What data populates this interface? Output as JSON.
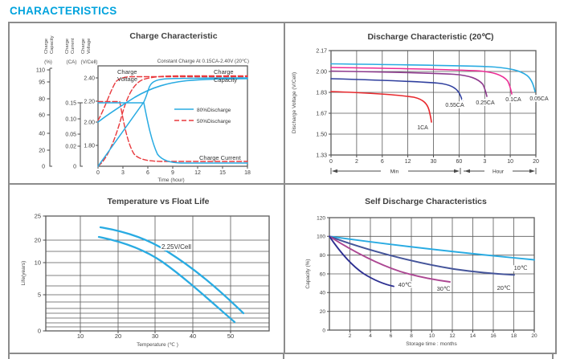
{
  "page": {
    "title": "CHARACTERISTICS"
  },
  "colors": {
    "accent": "#00A3DD",
    "grid": "#5A5A5A",
    "table_border": "#8C8C8C",
    "text": "#3C3C3C"
  },
  "chart_data": [
    {
      "type": "line",
      "title": "Charge Characteristic",
      "subtitle": "Constant Charge At 0.15CA-2.40V  (20℃)",
      "x_label": "Time (hour)",
      "x_tick_labels": [
        "0",
        "3",
        "6",
        "9",
        "12",
        "15",
        "18"
      ],
      "axes": [
        {
          "name": "Charge Capacity",
          "name_lines": [
            "Charge",
            "Capacity"
          ],
          "unit": "(%)",
          "ticks": [
            "110",
            "95",
            "80",
            "60",
            "40",
            "20",
            "0"
          ]
        },
        {
          "name": "Charge Current",
          "name_lines": [
            "Charge",
            "Current"
          ],
          "unit": "(CA)",
          "ticks": [
            "0.15",
            "0.10",
            "0.05",
            "0.02",
            "0"
          ]
        },
        {
          "name": "Charge Voltage",
          "name_lines": [
            "Charge",
            "Voltage"
          ],
          "unit": "(V/Cell)",
          "ticks": [
            "2.40",
            "2.20",
            "2.00",
            "1.80"
          ]
        }
      ],
      "legend": [
        {
          "label": "80%Discharge",
          "color": "#29ABE2",
          "line": "solid"
        },
        {
          "label": "50%Discharge",
          "color": "#E8393D",
          "line": "dashed"
        }
      ],
      "annotations": {
        "charge_voltage": [
          "Charge",
          "Voltage"
        ],
        "charge_capacity": [
          "Charge",
          "Capacity"
        ],
        "charge_current": "Charge Current"
      },
      "series": [
        {
          "name": "50% voltage (V/Cell)",
          "color": "#E8393D",
          "points": [
            [
              0,
              2.02
            ],
            [
              1,
              2.14
            ],
            [
              2,
              2.3
            ],
            [
              2.8,
              2.4
            ],
            [
              18,
              2.4
            ]
          ]
        },
        {
          "name": "50% capacity (%)",
          "color": "#E8393D",
          "points": [
            [
              0,
              0
            ],
            [
              1,
              20
            ],
            [
              2,
              55
            ],
            [
              3,
              85
            ],
            [
              4,
              95
            ],
            [
              6,
              99
            ],
            [
              18,
              100
            ]
          ]
        },
        {
          "name": "50% current (CA)",
          "color": "#E8393D",
          "points": [
            [
              0,
              0.15
            ],
            [
              2.8,
              0.15
            ],
            [
              3.5,
              0.06
            ],
            [
              4.5,
              0.02
            ],
            [
              18,
              0.004
            ]
          ]
        },
        {
          "name": "80% voltage (V/Cell)",
          "color": "#29ABE2",
          "points": [
            [
              0,
              2.0
            ],
            [
              2,
              2.1
            ],
            [
              4,
              2.22
            ],
            [
              6,
              2.31
            ],
            [
              9,
              2.36
            ],
            [
              12,
              2.38
            ],
            [
              18,
              2.39
            ]
          ]
        },
        {
          "name": "80% capacity (%)",
          "color": "#29ABE2",
          "points": [
            [
              0,
              0
            ],
            [
              2,
              29
            ],
            [
              4,
              58
            ],
            [
              5.5,
              79
            ],
            [
              6,
              93
            ],
            [
              8,
              97
            ],
            [
              12,
              99
            ],
            [
              18,
              100
            ]
          ]
        },
        {
          "name": "80% current (CA)",
          "color": "#29ABE2",
          "points": [
            [
              0,
              0.15
            ],
            [
              5.5,
              0.15
            ],
            [
              6.5,
              0.05
            ],
            [
              7.5,
              0.012
            ],
            [
              18,
              0.005
            ]
          ]
        }
      ]
    },
    {
      "type": "line",
      "title": "Discharge Characteristic (20℃)",
      "y_label": "Discharge Voltage (V/Cell)",
      "y_tick_labels": [
        "2.17",
        "2.00",
        "1.83",
        "1.67",
        "1.50",
        "1.33"
      ],
      "x_tick_labels": [
        "0",
        "2",
        "6",
        "12",
        "30",
        "60",
        "3",
        "10",
        "20"
      ],
      "x_sections": [
        "Min",
        "Hour"
      ],
      "series": [
        {
          "name": "0.05CA",
          "color": "#29ABE2",
          "points_time_V": [
            [
              "0h",
              2.06
            ],
            [
              "6h",
              2.03
            ],
            [
              "12h",
              1.99
            ],
            [
              "16h",
              1.93
            ],
            [
              "20h",
              1.81
            ]
          ]
        },
        {
          "name": "0.1CA",
          "color": "#EC2C95",
          "points_time_V": [
            [
              "0h",
              2.04
            ],
            [
              "5h",
              2.0
            ],
            [
              "8h",
              1.93
            ],
            [
              "10h",
              1.74
            ]
          ]
        },
        {
          "name": "0.25CA",
          "color": "#8E3A8E",
          "points_time_V": [
            [
              "0h",
              2.0
            ],
            [
              "1.5h",
              1.97
            ],
            [
              "2.5h",
              1.89
            ],
            [
              "3h",
              1.72
            ]
          ]
        },
        {
          "name": "0.55CA",
          "color": "#2F3F9E",
          "points_time_V": [
            [
              "0min",
              1.91
            ],
            [
              "40min",
              1.88
            ],
            [
              "60min",
              1.83
            ],
            [
              "65min",
              1.76
            ]
          ]
        },
        {
          "name": "1CA",
          "color": "#E8282D",
          "points_time_V": [
            [
              "0min",
              1.8
            ],
            [
              "15min",
              1.77
            ],
            [
              "22min",
              1.71
            ],
            [
              "26min",
              1.6
            ]
          ]
        }
      ]
    },
    {
      "type": "line",
      "title": "Temperature vs Float Life",
      "x_label": "Temperature (℃ )",
      "y_label": "Life(years)",
      "annotation": "2.25V/Cell",
      "x_tick_labels": [
        "10",
        "20",
        "30",
        "40",
        "50"
      ],
      "y_tick_labels": [
        "25",
        "20",
        "10",
        "5",
        "0"
      ],
      "series": [
        {
          "name": "float life upper",
          "color": "#29ABE2",
          "points_tempC_years": [
            [
              15,
              22.5
            ],
            [
              25,
              18.5
            ],
            [
              30,
              15
            ],
            [
              40,
              8.5
            ],
            [
              50,
              3.5
            ],
            [
              53,
              2.4
            ]
          ]
        },
        {
          "name": "float life lower",
          "color": "#29ABE2",
          "points_tempC_years": [
            [
              15,
              20.5
            ],
            [
              25,
              16
            ],
            [
              30,
              12.5
            ],
            [
              40,
              6.5
            ],
            [
              50,
              1.5
            ],
            [
              51,
              1.2
            ]
          ]
        }
      ]
    },
    {
      "type": "line",
      "title": "Self Discharge Characteristics",
      "x_label": "Storage time : months",
      "y_label": "Capacity (%)",
      "x_tick_labels": [
        "2",
        "4",
        "6",
        "8",
        "10",
        "12",
        "14",
        "16",
        "18",
        "20"
      ],
      "y_tick_labels": [
        "120",
        "100",
        "80",
        "60",
        "40",
        "20",
        "0"
      ],
      "series": [
        {
          "name": "10℃",
          "color": "#29ABE2",
          "points_months_pct": [
            [
              0,
              100
            ],
            [
              4,
              95
            ],
            [
              8,
              90
            ],
            [
              12,
              85
            ],
            [
              16,
              80
            ],
            [
              20,
              75
            ]
          ]
        },
        {
          "name": "20℃",
          "color": "#44549A",
          "points_months_pct": [
            [
              0,
              100
            ],
            [
              4,
              88
            ],
            [
              8,
              79
            ],
            [
              12,
              71
            ],
            [
              16,
              63
            ],
            [
              18,
              59
            ]
          ]
        },
        {
          "name": "30℃",
          "color": "#AC4792",
          "points_months_pct": [
            [
              0,
              100
            ],
            [
              2,
              88
            ],
            [
              4,
              78
            ],
            [
              6,
              69
            ],
            [
              8,
              62
            ],
            [
              10,
              56
            ],
            [
              11.8,
              52
            ]
          ]
        },
        {
          "name": "40℃",
          "color": "#2E3192",
          "points_months_pct": [
            [
              0,
              100
            ],
            [
              1,
              88
            ],
            [
              2,
              78
            ],
            [
              3,
              69
            ],
            [
              4,
              61
            ],
            [
              5,
              55
            ],
            [
              6.3,
              48
            ]
          ]
        }
      ]
    }
  ]
}
